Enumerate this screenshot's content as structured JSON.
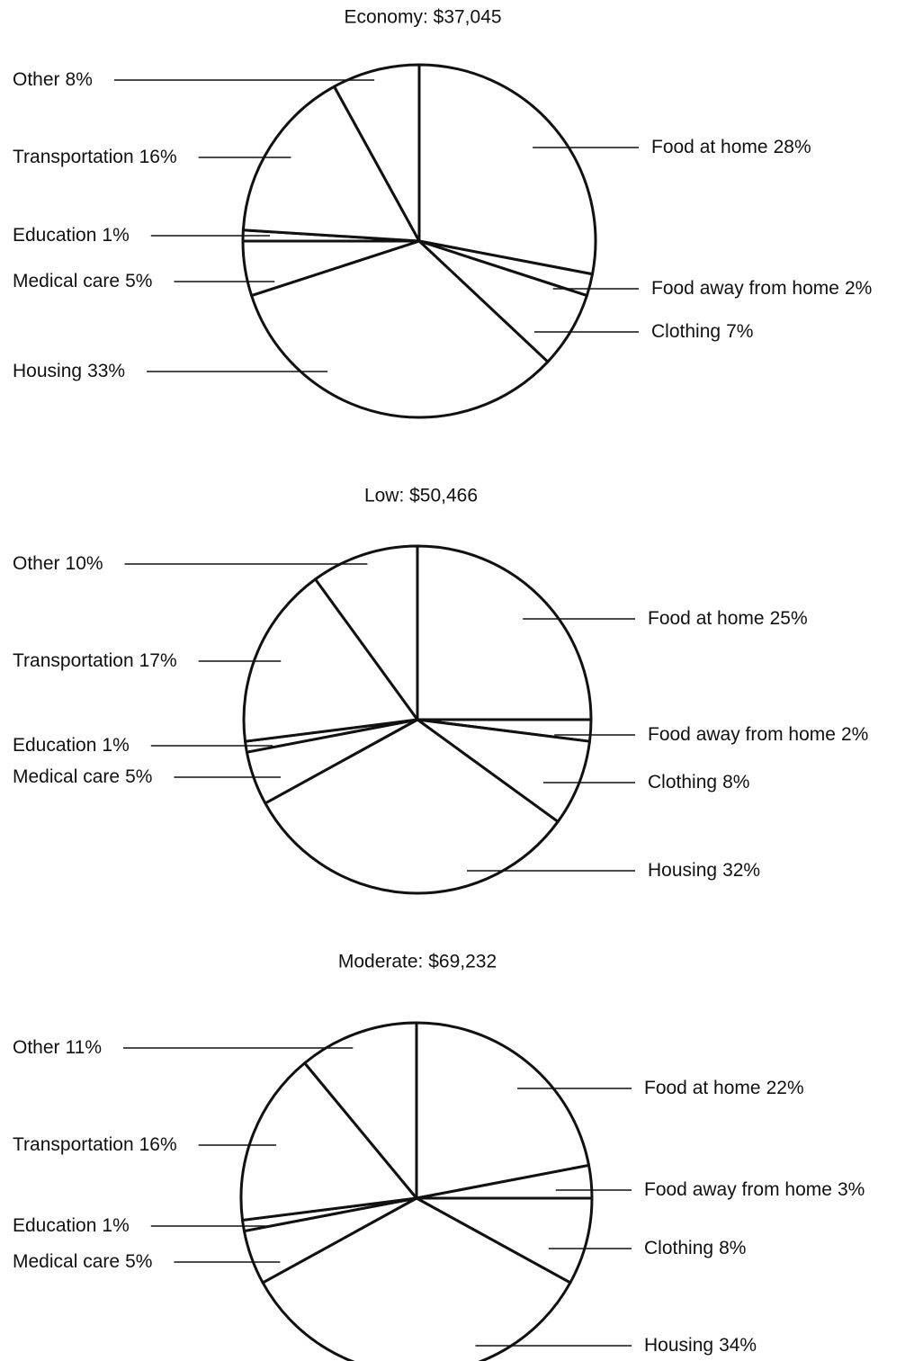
{
  "chart_data": [
    {
      "type": "pie",
      "title": "Economy: $37,045",
      "categories": [
        "Food at home",
        "Food away from home",
        "Clothing",
        "Housing",
        "Medical care",
        "Education",
        "Transportation",
        "Other"
      ],
      "values": [
        28,
        2,
        7,
        33,
        5,
        1,
        16,
        8
      ],
      "value_labels": [
        "28%",
        "2%",
        "7%",
        "33%",
        "5%",
        "1%",
        "16%",
        "8%"
      ]
    },
    {
      "type": "pie",
      "title": "Low: $50,466",
      "categories": [
        "Food at home",
        "Food away from home",
        "Clothing",
        "Housing",
        "Medical care",
        "Education",
        "Transportation",
        "Other"
      ],
      "values": [
        25,
        2,
        8,
        32,
        5,
        1,
        17,
        10
      ],
      "value_labels": [
        "25%",
        "2%",
        "8%",
        "32%",
        "5%",
        "1%",
        "17%",
        "10%"
      ]
    },
    {
      "type": "pie",
      "title": "Moderate: $69,232",
      "categories": [
        "Food at home",
        "Food away from home",
        "Clothing",
        "Housing",
        "Medical care",
        "Education",
        "Transportation",
        "Other"
      ],
      "values": [
        22,
        3,
        8,
        34,
        5,
        1,
        16,
        11
      ],
      "value_labels": [
        "22%",
        "3%",
        "8%",
        "34%",
        "5%",
        "1%",
        "16%",
        "11%"
      ]
    }
  ]
}
